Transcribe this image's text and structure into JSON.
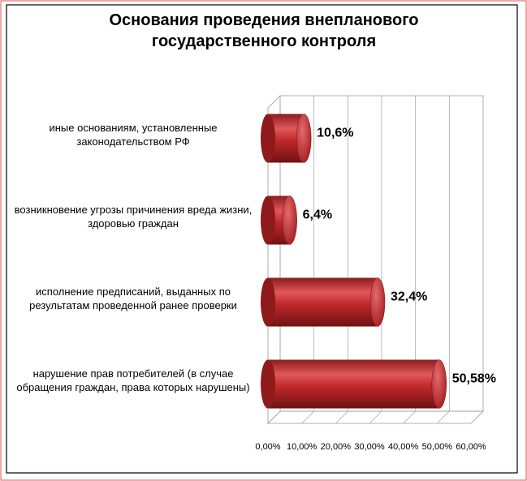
{
  "chart_data": {
    "type": "bar3d-horizontal",
    "title": "Основания проведения внепланового государственного контроля",
    "categories": [
      "иные основаниям, установленные законодательством РФ",
      "возникновение угрозы причинения вреда жизни, здоровью граждан",
      "исполнение предписаний, выданных по результатам проведенной ранее проверки",
      "нарушение прав  потребителей (в случае обращения граждан, права которых нарушены)"
    ],
    "values": [
      10.6,
      6.4,
      32.4,
      50.58
    ],
    "value_labels": [
      "10,6%",
      "6,4%",
      "32,4%",
      "50,58%"
    ],
    "color": "#c0282a",
    "xlim": [
      0,
      60
    ],
    "xticks": [
      {
        "value": 0,
        "label": "0,00%"
      },
      {
        "value": 10,
        "label": "10,00%"
      },
      {
        "value": 20,
        "label": "20,00%"
      },
      {
        "value": 30,
        "label": "30,00%"
      },
      {
        "value": 40,
        "label": "40,00%"
      },
      {
        "value": 50,
        "label": "50,00%"
      },
      {
        "value": 60,
        "label": "60,00%"
      }
    ],
    "grid": true
  }
}
